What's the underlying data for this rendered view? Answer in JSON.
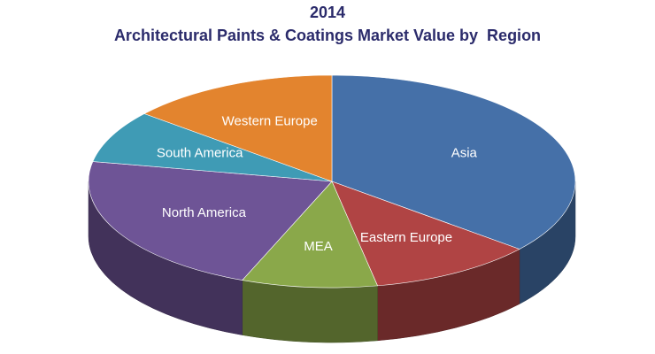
{
  "chart_data": {
    "type": "pie3d",
    "title": "2014",
    "subtitle": "Architectural Paints & Coatings Market Value by  Region",
    "categories": [
      "Asia",
      "Eastern Europe",
      "MEA",
      "North America",
      "South America",
      "Western Europe"
    ],
    "values": [
      36,
      11,
      9,
      22,
      8,
      14
    ],
    "colors": [
      "#4570a8",
      "#b04444",
      "#8aa84a",
      "#6e5496",
      "#3f9bb5",
      "#e3842e"
    ]
  }
}
